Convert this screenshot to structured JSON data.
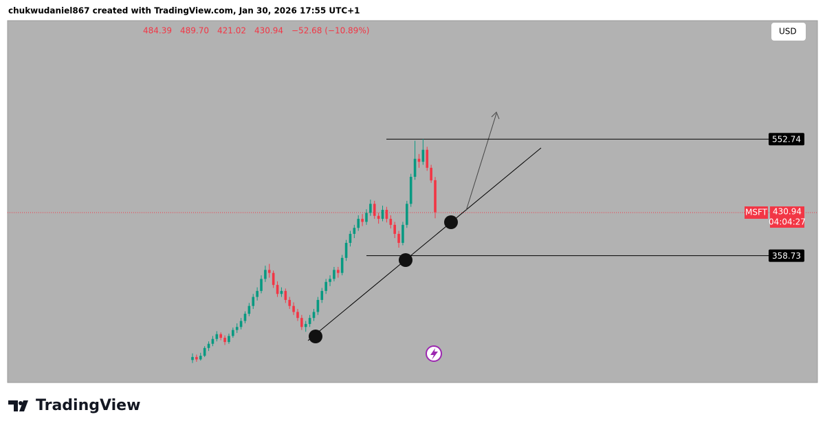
{
  "header": "chukwudaniel867 created with TradingView.com, Jan 30, 2026 17:55 UTC+1",
  "currency": "USD",
  "brand": "TradingView",
  "chart_data": {
    "type": "candlestick",
    "symbol": "MSFT",
    "countdown": "04:04:27",
    "legend": [
      "484.39",
      "489.70",
      "421.02",
      "430.94",
      "−52.68 (−10.89%)"
    ],
    "up_color": "#089981",
    "down_color": "#f23645",
    "ylim": [
      147.5,
      750
    ],
    "levels": [
      552.74,
      358.73
    ],
    "ohlc": [
      [
        185,
        196,
        180,
        190
      ],
      [
        190,
        194,
        182,
        186
      ],
      [
        186,
        197,
        184,
        192
      ],
      [
        192,
        208,
        190,
        205
      ],
      [
        205,
        216,
        200,
        212
      ],
      [
        212,
        225,
        208,
        220
      ],
      [
        220,
        233,
        216,
        228
      ],
      [
        228,
        231,
        218,
        222
      ],
      [
        222,
        226,
        210,
        215
      ],
      [
        215,
        229,
        212,
        225
      ],
      [
        225,
        239,
        222,
        235
      ],
      [
        235,
        246,
        230,
        240
      ],
      [
        240,
        255,
        236,
        250
      ],
      [
        250,
        266,
        246,
        262
      ],
      [
        262,
        280,
        258,
        275
      ],
      [
        275,
        295,
        270,
        290
      ],
      [
        290,
        306,
        284,
        300
      ],
      [
        300,
        326,
        296,
        320
      ],
      [
        320,
        342,
        315,
        335
      ],
      [
        335,
        345,
        322,
        330
      ],
      [
        330,
        334,
        305,
        310
      ],
      [
        310,
        316,
        290,
        295
      ],
      [
        295,
        306,
        290,
        300
      ],
      [
        300,
        304,
        280,
        285
      ],
      [
        285,
        290,
        270,
        275
      ],
      [
        275,
        281,
        260,
        265
      ],
      [
        265,
        270,
        250,
        255
      ],
      [
        255,
        260,
        235,
        240
      ],
      [
        240,
        250,
        232,
        245
      ],
      [
        245,
        260,
        240,
        255
      ],
      [
        255,
        270,
        250,
        265
      ],
      [
        265,
        290,
        260,
        285
      ],
      [
        285,
        305,
        280,
        300
      ],
      [
        300,
        320,
        295,
        315
      ],
      [
        315,
        326,
        308,
        320
      ],
      [
        320,
        340,
        316,
        335
      ],
      [
        335,
        340,
        322,
        330
      ],
      [
        330,
        360,
        326,
        355
      ],
      [
        355,
        385,
        350,
        380
      ],
      [
        380,
        400,
        374,
        395
      ],
      [
        395,
        410,
        388,
        405
      ],
      [
        405,
        426,
        400,
        420
      ],
      [
        420,
        428,
        408,
        415
      ],
      [
        415,
        436,
        410,
        430
      ],
      [
        430,
        452,
        425,
        445
      ],
      [
        445,
        450,
        420,
        425
      ],
      [
        425,
        430,
        412,
        420
      ],
      [
        420,
        442,
        416,
        435
      ],
      [
        435,
        440,
        414,
        420
      ],
      [
        420,
        426,
        404,
        410
      ],
      [
        410,
        415,
        388,
        395
      ],
      [
        395,
        400,
        372,
        380
      ],
      [
        380,
        415,
        376,
        410
      ],
      [
        410,
        450,
        405,
        445
      ],
      [
        445,
        495,
        440,
        490
      ],
      [
        490,
        550,
        485,
        520
      ],
      [
        520,
        528,
        505,
        515
      ],
      [
        515,
        553,
        510,
        535
      ],
      [
        535,
        540,
        500,
        505
      ],
      [
        505,
        510,
        480,
        484
      ],
      [
        484.39,
        489.7,
        421.02,
        430.94
      ]
    ]
  }
}
